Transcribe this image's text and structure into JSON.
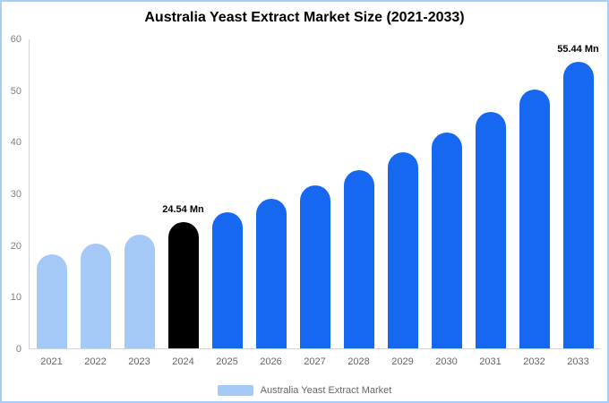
{
  "chart_data": {
    "type": "bar",
    "title": "Australia Yeast Extract Market Size (2021-2033)",
    "categories": [
      "2021",
      "2022",
      "2023",
      "2024",
      "2025",
      "2026",
      "2027",
      "2028",
      "2029",
      "2030",
      "2031",
      "2032",
      "2033"
    ],
    "values": [
      18.2,
      20.3,
      22.0,
      24.54,
      26.4,
      29.0,
      31.6,
      34.5,
      38.0,
      41.8,
      45.8,
      50.1,
      55.44
    ],
    "labels": [
      "",
      "",
      "",
      "24.54 Mn",
      "",
      "",
      "",
      "",
      "",
      "",
      "",
      "",
      "55.44 Mn"
    ],
    "colors": [
      "#a5c9f6",
      "#a5c9f6",
      "#a5c9f6",
      "#000000",
      "#1668f0",
      "#1668f0",
      "#1668f0",
      "#1668f0",
      "#1668f0",
      "#1668f0",
      "#1668f0",
      "#1668f0",
      "#1668f0"
    ],
    "ylim": [
      0,
      60
    ],
    "yticks": [
      0,
      10,
      20,
      30,
      40,
      50,
      60
    ],
    "xlabel": "",
    "ylabel": "",
    "grid": false,
    "legend_position": "bottom",
    "legend": [
      {
        "label": "Australia Yeast Extract Market",
        "color": "#a5c9f6"
      }
    ],
    "accent_colors": {
      "historical_bar": "#a5c9f6",
      "current_year_bar": "#000000",
      "forecast_bar": "#1668f0",
      "page_border": "#a9cdf8"
    }
  }
}
